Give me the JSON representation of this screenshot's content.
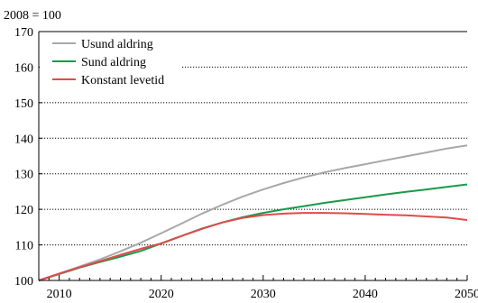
{
  "chart_data": {
    "type": "line",
    "unit_label": "2008 = 100",
    "xlim": [
      2008,
      2050
    ],
    "ylim": [
      100,
      170
    ],
    "x_ticks": [
      2010,
      2020,
      2030,
      2040,
      2050
    ],
    "y_ticks": [
      100,
      110,
      120,
      130,
      140,
      150,
      160,
      170
    ],
    "grid": "horizontal-dotted",
    "legend_position": "top-left",
    "x": [
      2008,
      2010,
      2012,
      2014,
      2016,
      2018,
      2020,
      2022,
      2024,
      2026,
      2028,
      2030,
      2032,
      2034,
      2036,
      2038,
      2040,
      2042,
      2044,
      2046,
      2048,
      2050
    ],
    "series": [
      {
        "name": "Usund aldring",
        "color": "#a8a8a8",
        "values": [
          100,
          101.9,
          103.9,
          105.9,
          108.2,
          110.6,
          113.3,
          116.0,
          118.8,
          121.3,
          123.6,
          125.6,
          127.4,
          129.0,
          130.4,
          131.6,
          132.7,
          133.8,
          134.9,
          136.0,
          137.1,
          138.0
        ]
      },
      {
        "name": "Sund aldring",
        "color": "#1a9a4a",
        "values": [
          100,
          101.8,
          103.6,
          105.2,
          106.7,
          108.3,
          110.4,
          112.5,
          114.6,
          116.3,
          117.8,
          119.0,
          120.0,
          120.9,
          121.8,
          122.6,
          123.4,
          124.2,
          124.9,
          125.6,
          126.3,
          127.0
        ]
      },
      {
        "name": "Konstant levetid",
        "color": "#e04a4a",
        "values": [
          100,
          101.9,
          103.7,
          105.4,
          107.2,
          108.9,
          110.4,
          112.5,
          114.5,
          116.3,
          117.6,
          118.4,
          118.8,
          119.0,
          119.0,
          118.9,
          118.7,
          118.5,
          118.3,
          118.0,
          117.7,
          117.0
        ]
      }
    ]
  }
}
